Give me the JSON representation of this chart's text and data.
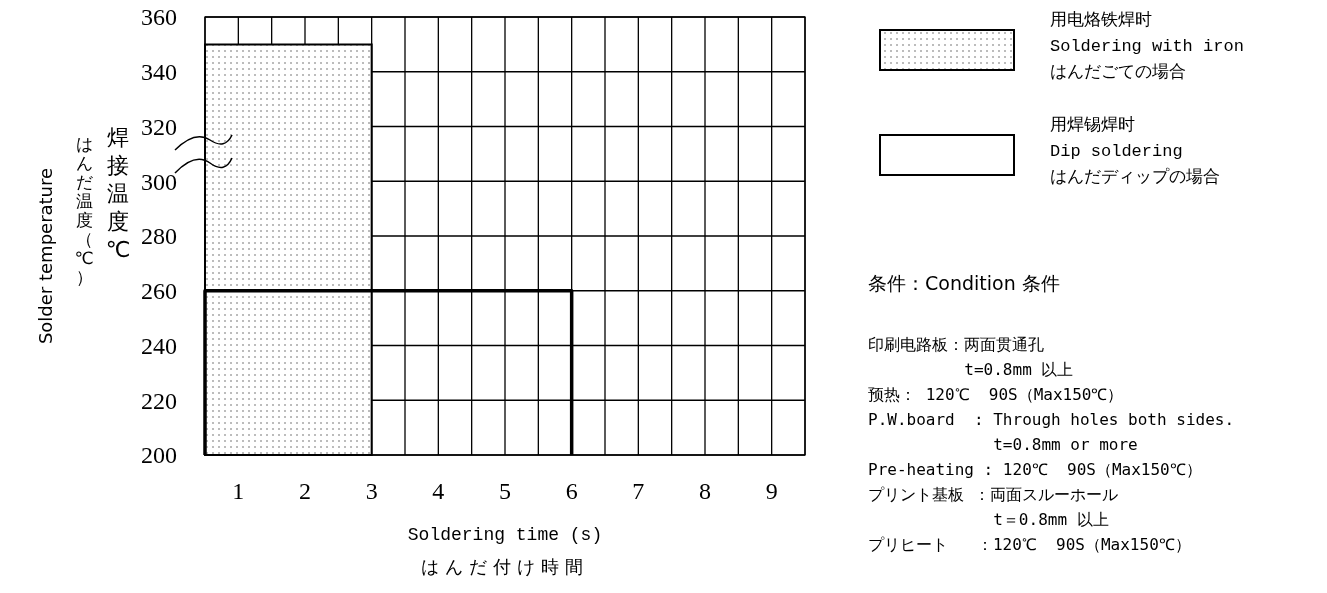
{
  "chart_data": {
    "type": "area",
    "xlabel": "Soldering time (s)\nはんだ付け時間",
    "ylabel": "Solder temperature",
    "xlim": [
      0.5,
      9.5
    ],
    "xticks": [
      {
        "value": 0.5,
        "label": null
      },
      1,
      {
        "value": 1.5,
        "label": null
      },
      2,
      {
        "value": 2.5,
        "label": null
      },
      3,
      {
        "value": 3.5,
        "label": null
      },
      4,
      {
        "value": 4.5,
        "label": null
      },
      5,
      {
        "value": 5.5,
        "label": null
      },
      6,
      {
        "value": 6.5,
        "label": null
      },
      7,
      {
        "value": 7.5,
        "label": null
      },
      8,
      {
        "value": 8.5,
        "label": null
      },
      9,
      {
        "value": 9.5,
        "label": null
      }
    ],
    "ylim": [
      200,
      360
    ],
    "yticks": [
      200,
      220,
      240,
      260,
      280,
      300,
      320,
      340,
      360
    ],
    "grid": true,
    "legend": "right",
    "series": [
      {
        "name": "用电烙铁焊时\nSoldering with iron\nはんだごての場合",
        "color": "#000000",
        "x": [
          0.5,
          3
        ],
        "values": [
          350,
          350
        ]
      },
      {
        "name": "用焊锡焊时\nDip soldering\nはんだディップの場合",
        "type": "line",
        "color": "#000000",
        "x": [
          0.5,
          0.5,
          6,
          6
        ],
        "values": [
          200,
          260,
          260,
          200
        ]
      }
    ],
    "annotations": [
      "はんだ温度（℃）",
      "焊接温度℃",
      "条件：Condition 条件",
      "印刷电路板：两面贯通孔",
      "          t=0.8mm 以上",
      "预热： 120℃  90S（Max150℃）",
      "P.W.board  : Through holes both sides.",
      "             t=0.8mm or more",
      "Pre-heating : 120℃  90S（Max150℃）",
      "プリント基板 ：両面スルーホール",
      "             t＝0.8mm 以上",
      "プリヒート   ：120℃  90S（Max150℃）"
    ]
  }
}
